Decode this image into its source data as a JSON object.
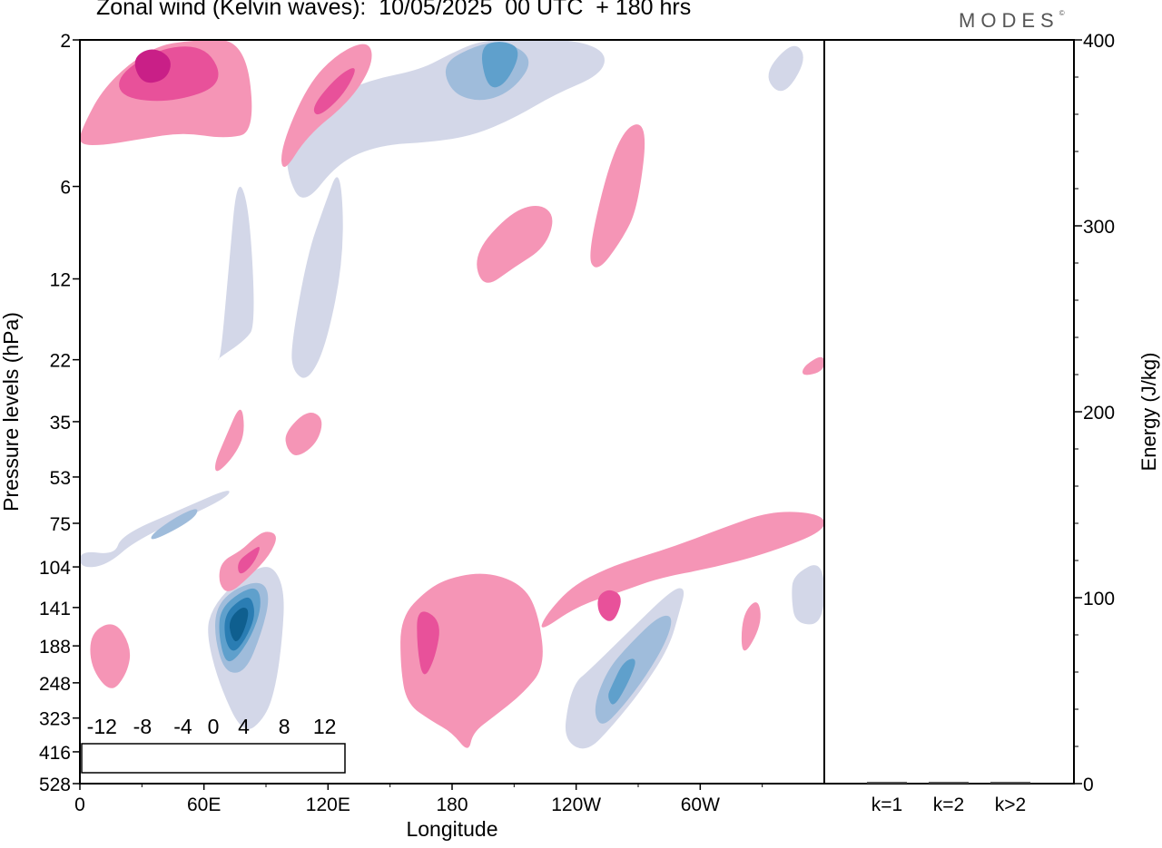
{
  "title": "Zonal wind (Kelvin waves):  10/05/2025  00 UTC  + 180 hrs",
  "brand": "MODES",
  "brand_mark": "©",
  "chart_data": [
    {
      "type": "heatmap",
      "title": "Zonal wind (Kelvin waves):  10/05/2025  00 UTC  + 180 hrs",
      "xlabel": "Longitude",
      "ylabel": "Pressure levels (hPa)",
      "x_ticks": [
        "0",
        "60E",
        "120E",
        "180",
        "120W",
        "60W"
      ],
      "x_tick_values": [
        0,
        60,
        120,
        180,
        240,
        300
      ],
      "xlim": [
        0,
        360
      ],
      "y_ticks": [
        "2",
        "6",
        "12",
        "22",
        "35",
        "53",
        "75",
        "104",
        "141",
        "188",
        "248",
        "323",
        "416",
        "528"
      ],
      "y_scale": "log (inverted)",
      "colorbar": {
        "labels": [
          "-12",
          "-8",
          "-4",
          "0",
          "4",
          "8",
          "12"
        ],
        "label_values": [
          -12,
          -8,
          -4,
          0,
          4,
          8,
          12
        ],
        "levels": [
          -14,
          -12,
          -10,
          -8,
          -6,
          -4,
          -2,
          2,
          4,
          6,
          8,
          10,
          12,
          14
        ],
        "colors": [
          "#0b3d5a",
          "#0f5f8f",
          "#2a7db3",
          "#5fa0cc",
          "#9fbcdb",
          "#d3d7e8",
          "#ffffff",
          "#f8c4c4",
          "#f595b6",
          "#e8519a",
          "#c91f87",
          "#94107d",
          "#5c0a6e"
        ],
        "placement": "bottom-left"
      },
      "regions": [
        {
          "value": -4,
          "lon": [
            17,
            20,
            50,
            74,
            70,
            28,
            13,
            0,
            0
          ],
          "p": [
            95,
            82,
            67,
            57,
            63,
            84,
            103,
            105,
            92
          ]
        },
        {
          "value": -6,
          "lon": [
            34,
            47,
            58,
            55,
            35
          ],
          "p": [
            82,
            71,
            66,
            73,
            86
          ]
        },
        {
          "value": -4,
          "lon": [
            64,
            73,
            86,
            94,
            99,
            98,
            95,
            90,
            79,
            67,
            61
          ],
          "p": [
            142,
            120,
            104,
            104,
            125,
            175,
            250,
            320,
            370,
            248,
            170
          ]
        },
        {
          "value": -6,
          "lon": [
            66,
            75,
            88,
            92,
            88,
            80,
            70,
            65
          ],
          "p": [
            140,
            122,
            115,
            130,
            170,
            230,
            230,
            175
          ]
        },
        {
          "value": -8,
          "lon": [
            68,
            77,
            86,
            88,
            83,
            75,
            70,
            67
          ],
          "p": [
            143,
            126,
            120,
            140,
            175,
            210,
            212,
            170
          ]
        },
        {
          "value": -10,
          "lon": [
            70,
            78,
            83,
            85,
            80,
            74,
            70
          ],
          "p": [
            148,
            132,
            130,
            150,
            180,
            200,
            180
          ]
        },
        {
          "value": -12,
          "lon": [
            72,
            78,
            82,
            80,
            76,
            73
          ],
          "p": [
            155,
            140,
            143,
            165,
            185,
            175
          ]
        },
        {
          "value": -4,
          "lon": [
            245,
            265,
            287,
            293,
            290,
            285,
            272,
            258,
            245,
            234,
            236,
            240
          ],
          "p": [
            230,
            170,
            122,
            122,
            145,
            190,
            260,
            340,
            420,
            380,
            290,
            245
          ]
        },
        {
          "value": -6,
          "lon": [
            255,
            266,
            280,
            287,
            284,
            274,
            262,
            252,
            248
          ],
          "p": [
            225,
            185,
            150,
            150,
            180,
            235,
            300,
            350,
            300
          ]
        },
        {
          "value": -8,
          "lon": [
            257,
            263,
            270,
            265,
            258,
            255
          ],
          "p": [
            255,
            210,
            205,
            250,
            300,
            275
          ]
        },
        {
          "value": -4,
          "lon": [
            100,
            115,
            140,
            165,
            180,
            195,
            215,
            240,
            255,
            252,
            230,
            210,
            190,
            170,
            145,
            125,
            108,
            100
          ],
          "p": [
            4,
            3.2,
            2.7,
            2.5,
            2.2,
            2.0,
            2.0,
            2.0,
            2.2,
            2.6,
            3.0,
            3.6,
            4.1,
            4.3,
            4.4,
            5.0,
            7.0,
            5.5
          ]
        },
        {
          "value": -6,
          "lon": [
            175,
            190,
            205,
            220,
            210,
            195,
            180
          ],
          "p": [
            2.4,
            2.1,
            2.0,
            2.3,
            2.9,
            3.2,
            3.0
          ]
        },
        {
          "value": -8,
          "lon": [
            193,
            204,
            214,
            206,
            197
          ],
          "p": [
            2.1,
            2.0,
            2.15,
            2.8,
            2.9
          ]
        },
        {
          "value": -4,
          "lon": [
            66,
            80,
            85,
            82,
            76,
            72,
            68
          ],
          "p": [
            22,
            19,
            17,
            7,
            5.5,
            11,
            22
          ]
        },
        {
          "value": -4,
          "lon": [
            102,
            110,
            118,
            126,
            128,
            119,
            110,
            103
          ],
          "p": [
            20,
            10,
            7,
            5,
            10,
            20,
            26,
            24
          ]
        },
        {
          "value": -4,
          "lon": [
            345,
            360,
            360,
            346,
            344
          ],
          "p": [
            110,
            98,
            160,
            160,
            130
          ]
        },
        {
          "value": -4,
          "lon": [
            330,
            345,
            352,
            340
          ],
          "p": [
            2.6,
            2.0,
            2.3,
            3.1
          ]
        },
        {
          "value": 4,
          "lon": [
            155,
            168,
            180,
            198,
            215,
            222,
            225,
            214,
            200,
            190,
            188,
            180,
            170,
            158,
            155
          ],
          "p": [
            152,
            123,
            112,
            108,
            120,
            150,
            220,
            270,
            320,
            360,
            420,
            360,
            330,
            290,
            220
          ]
        },
        {
          "value": 6,
          "lon": [
            163,
            175,
            172,
            166,
            163
          ],
          "p": [
            140,
            155,
            205,
            245,
            190
          ]
        },
        {
          "value": 4,
          "lon": [
            222,
            240,
            262,
            280,
            305,
            330,
            360,
            360,
            335,
            310,
            290,
            270,
            255,
            238,
            225
          ],
          "p": [
            170,
            140,
            125,
            113,
            105,
            95,
            80,
            70,
            68,
            78,
            88,
            97,
            105,
            120,
            150
          ]
        },
        {
          "value": 6,
          "lon": [
            250,
            256,
            263,
            258,
            251
          ],
          "p": [
            130,
            122,
            130,
            160,
            150
          ]
        },
        {
          "value": 4,
          "lon": [
            5,
            17,
            25,
            23,
            15,
            5
          ],
          "p": [
            170,
            155,
            190,
            230,
            270,
            220
          ]
        },
        {
          "value": 4,
          "lon": [
            68,
            78,
            84,
            90,
            96,
            92,
            82,
            72,
            67
          ],
          "p": [
            100,
            92,
            84,
            79,
            82,
            95,
            112,
            128,
            118
          ]
        },
        {
          "value": 6,
          "lon": [
            76,
            83,
            88,
            84,
            77
          ],
          "p": [
            100,
            92,
            88,
            102,
            112
          ]
        },
        {
          "value": 4,
          "lon": [
            0,
            12,
            35,
            55,
            80,
            85,
            70,
            50,
            30,
            12,
            0
          ],
          "p": [
            4.0,
            2.8,
            2.1,
            2.0,
            2.0,
            4.0,
            4.2,
            4.0,
            4.2,
            4.4,
            4.4
          ]
        },
        {
          "value": 6,
          "lon": [
            18,
            40,
            62,
            70,
            45,
            20
          ],
          "p": [
            2.6,
            2.1,
            2.1,
            2.8,
            3.2,
            3.1
          ]
        },
        {
          "value": 8,
          "lon": [
            25,
            35,
            45,
            42,
            30
          ],
          "p": [
            2.3,
            2.1,
            2.3,
            2.7,
            2.8
          ]
        },
        {
          "value": 4,
          "lon": [
            97,
            110,
            125,
            140,
            142,
            130,
            110,
            98
          ],
          "p": [
            4.5,
            2.8,
            2.2,
            2.0,
            2.4,
            3.2,
            4.1,
            5.5
          ]
        },
        {
          "value": 6,
          "lon": [
            112,
            125,
            135,
            128,
            115
          ],
          "p": [
            3.3,
            2.6,
            2.4,
            3.0,
            3.6
          ]
        },
        {
          "value": 4,
          "lon": [
            190,
            208,
            222,
            230,
            225,
            210,
            195
          ],
          "p": [
            10,
            7.3,
            6.8,
            7.5,
            9.5,
            11,
            13
          ]
        },
        {
          "value": 4,
          "lon": [
            245,
            260,
            275,
            270,
            262,
            250
          ],
          "p": [
            10,
            4.0,
            3.6,
            7,
            9,
            11.5
          ]
        },
        {
          "value": 4,
          "lon": [
            99,
            110,
            118,
            115,
            105,
            100
          ],
          "p": [
            38,
            32,
            34,
            41,
            46,
            43
          ]
        },
        {
          "value": 4,
          "lon": [
            66,
            75,
            80,
            78,
            70,
            65
          ],
          "p": [
            52,
            45,
            38,
            30,
            40,
            48
          ]
        },
        {
          "value": 4,
          "lon": [
            320,
            330,
            328,
            320
          ],
          "p": [
            210,
            160,
            130,
            150
          ]
        },
        {
          "value": 4,
          "lon": [
            349,
            360,
            360,
            350
          ],
          "p": [
            25,
            24,
            21,
            23
          ]
        }
      ]
    },
    {
      "type": "bar",
      "categories": [
        "k=1",
        "k=2",
        "k>2"
      ],
      "values": [
        0.5,
        0.5,
        0.5
      ],
      "ylabel": "Energy (J/kg)",
      "y_ticks": [
        "0",
        "100",
        "200",
        "300",
        "400"
      ],
      "ylim": [
        0,
        400
      ]
    }
  ]
}
